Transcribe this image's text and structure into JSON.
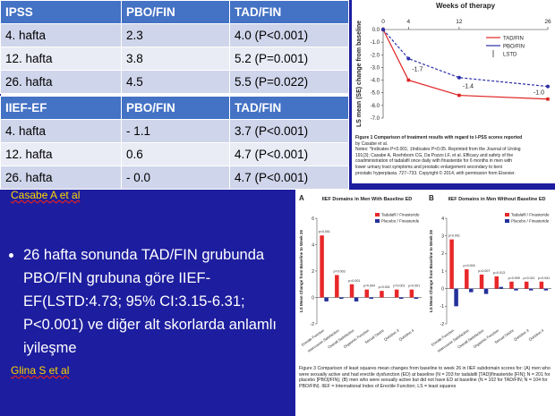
{
  "table": {
    "sections": [
      {
        "header": [
          "IPSS",
          "PBO/FIN",
          "TAD/FIN"
        ],
        "rows": [
          [
            "4. hafta",
            "2.3",
            "4.0 (P<0.001)"
          ],
          [
            "12. hafta",
            "3.8",
            "5.2 (P=0.001)"
          ],
          [
            "26. hafta",
            "4.5",
            "5.5 (P=0.022)"
          ]
        ]
      },
      {
        "header": [
          "IIEF-EF",
          "PBO/FIN",
          "TAD/FIN"
        ],
        "rows": [
          [
            "4. hafta",
            "- 1.1",
            "3.7 (P<0.001)"
          ],
          [
            "12. hafta",
            "0.6",
            "4.7 (P<0.001)"
          ],
          [
            "26. hafta",
            "- 0.0",
            "4.7 (P<0.001)"
          ]
        ]
      }
    ]
  },
  "citations": [
    "Casabe A et al",
    "Glina S et al"
  ],
  "bullet": "26 hafta sonunda TAD/FIN grubunda PBO/FIN grubuna göre IIEF-EF(LSTD:4.73; 95% CI:3.15-6.31; P<0.001) ve diğer alt skorlarda anlamlı iyileşme",
  "figure1": {
    "type": "line",
    "title": "Weeks of therapy",
    "y_label": "LS mean (SE) change from baseline",
    "x": [
      0,
      4,
      12,
      26
    ],
    "xlim": [
      0,
      26
    ],
    "xticks": [
      0,
      4,
      12,
      26
    ],
    "ylim": [
      -7,
      0
    ],
    "yticks": [
      {
        "value": 0,
        "label": "0.0"
      },
      {
        "value": -1,
        "label": "-1.0"
      },
      {
        "value": -2,
        "label": "-2.0"
      },
      {
        "value": -3,
        "label": "-3.0"
      },
      {
        "value": -4,
        "label": "-4.0"
      },
      {
        "value": -5,
        "label": "-5.0"
      },
      {
        "value": -6,
        "label": "-6.0"
      },
      {
        "value": -7,
        "label": "-7.0"
      }
    ],
    "series": [
      {
        "name": "TAD/FIN",
        "color": "#e02424",
        "values": [
          0,
          -4.0,
          -5.2,
          -5.5
        ]
      },
      {
        "name": "PBO/FIN",
        "color": "#2b2fa8",
        "values": [
          0,
          -2.3,
          -3.8,
          -4.5
        ]
      }
    ],
    "annotations": [
      {
        "x": 4,
        "label": "-1.7"
      },
      {
        "x": 12,
        "label": "-1.4"
      },
      {
        "x": 26,
        "label": "-1.0"
      }
    ],
    "legend_extra": "LSTD",
    "caption": [
      "Figure 1 Comparison of treatment results with regard to I-PSS scores reported",
      "by Casabe et al.",
      "Notes: *Indicates P<0.001; ‡Indicates P<0.05. Reprinted from the Journal of Urolog",
      "191(3); Casabe A, Roehrborn CG, Da Pozzo LF, et al. Efficacy and safety of the",
      "coadministration of tadalafil once daily with finasteride for 6 months in men with",
      "lower urinary tract symptoms and prostatic enlargement secondary to beni",
      "prostatic hyperplasia. 727–733. Copyright © 2014, with permission from Elsevier."
    ]
  },
  "figure2": {
    "type": "bar",
    "y_label": "LS Mean Change from Baseline to Week 26",
    "categories": [
      "Erectile Function",
      "Intercourse Satisfaction",
      "Overall Satisfaction",
      "Orgasmic Function",
      "Sexual Desire",
      "Question 3",
      "Question 4"
    ],
    "panels": [
      {
        "letter": "A",
        "title": "IIEF Domains in Men With Baseline ED",
        "ylim": [
          -2,
          6
        ],
        "yticks": [
          -2,
          0,
          2,
          4,
          6
        ],
        "series": [
          {
            "name": "Tadalafil / Finasteride",
            "color": "#e8282a",
            "values": [
              4.7,
              1.7,
              1.0,
              0.6,
              0.5,
              0.6,
              0.6
            ]
          },
          {
            "name": "Placebo / Finasteride",
            "color": "#24309a",
            "values": [
              -0.3,
              -0.1,
              -0.3,
              -0.1,
              0.0,
              -0.1,
              -0.1
            ]
          }
        ],
        "p_labels": [
          "p<0.001",
          "p=0.003",
          "p=0.001",
          "p=0.004",
          "p=0.001",
          "p=0.001",
          "p<0.001"
        ]
      },
      {
        "letter": "B",
        "title": "IIEF Domains in Men Without Baseline ED",
        "ylim": [
          -2,
          4
        ],
        "yticks": [
          -2,
          -1,
          0,
          1,
          2,
          3,
          4
        ],
        "series": [
          {
            "name": "Tadalafil / Finasteride",
            "color": "#e8282a",
            "values": [
              2.8,
              1.1,
              0.8,
              0.7,
              0.4,
              0.4,
              0.4
            ]
          },
          {
            "name": "Placebo / Finasteride",
            "color": "#24309a",
            "values": [
              -1.0,
              -0.2,
              -0.3,
              0.1,
              -0.1,
              -0.1,
              -0.1
            ]
          }
        ],
        "p_labels": [
          "p<0.001",
          "p=0.004",
          "p=0.007",
          "p=0.013",
          "p=0.009",
          "p=0.011",
          "p=0.041"
        ]
      }
    ],
    "caption": "Figure 3 Comparison of least squares mean changes from baseline to week 26 in IIEF subdomain scores for: (A) men who were sexually active and had erectile dysfunction (ED) at baseline (N = 203 for tadalafil [TAD]/finasteride [FIN]; N = 201 for placebo [PBO]/FIN); (B) men who were sexually active but did not have ED at baseline (N = 102 for TAD/FIN; N = 104 for PBO/FIN). IIEF = International Index of Erectile Function; LS = least squares"
  }
}
